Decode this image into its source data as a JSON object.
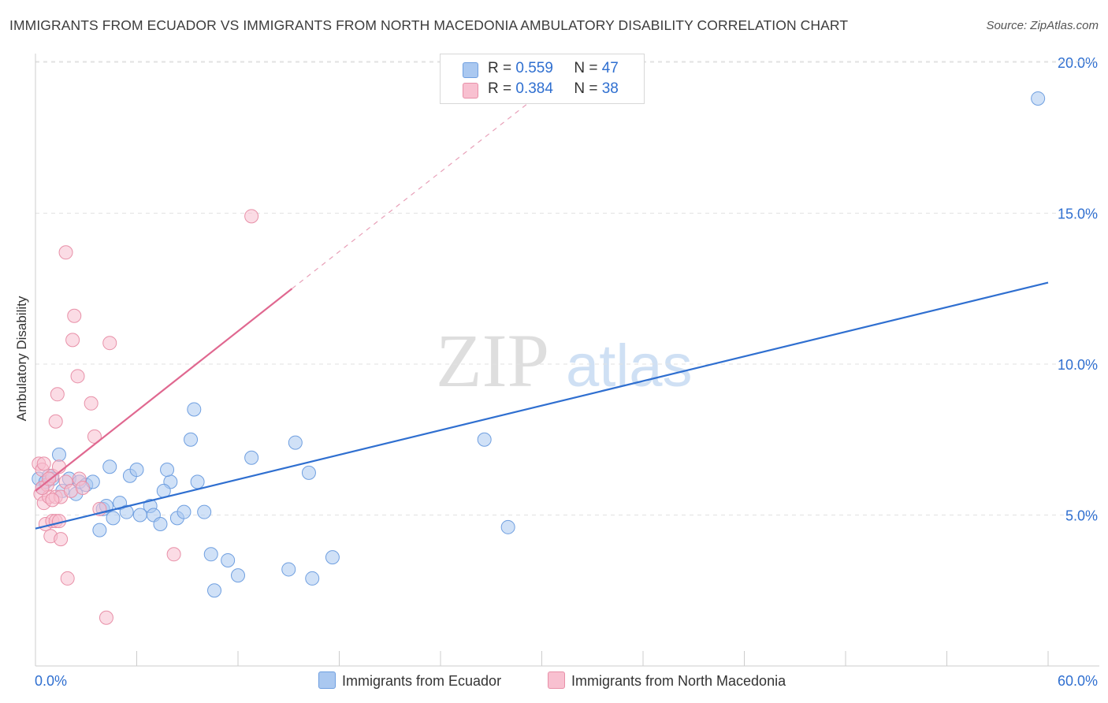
{
  "title": "IMMIGRANTS FROM ECUADOR VS IMMIGRANTS FROM NORTH MACEDONIA AMBULATORY DISABILITY CORRELATION CHART",
  "source": "Source: ZipAtlas.com",
  "watermark": {
    "zip": "ZIP",
    "atlas": "atlas"
  },
  "legend": {
    "r_label": "R =",
    "n_label": "N =",
    "items": [
      {
        "r": "0.559",
        "n": "47",
        "color": "#aac8f0",
        "border": "#6f9fe0"
      },
      {
        "r": "0.384",
        "n": "38",
        "color": "#f8c0d0",
        "border": "#e890a8"
      }
    ]
  },
  "chart_data": {
    "type": "scatter",
    "title": "IMMIGRANTS FROM ECUADOR VS IMMIGRANTS FROM NORTH MACEDONIA AMBULATORY DISABILITY CORRELATION CHART",
    "xlabel": "",
    "ylabel": "Ambulatory Disability",
    "xlim": [
      0,
      60
    ],
    "ylim": [
      0,
      20.5
    ],
    "x_tick_labels": [
      "0.0%",
      "60.0%"
    ],
    "y_ticks": [
      5,
      10,
      15,
      20
    ],
    "y_tick_labels": [
      "5.0%",
      "10.0%",
      "15.0%",
      "20.0%"
    ],
    "legend_position": "top-center",
    "series": [
      {
        "name": "Immigrants from Ecuador",
        "color": "#aac8f0",
        "stroke": "#6f9fe0",
        "line_color": "#2f6fd0",
        "trend": {
          "x0": 0,
          "y0": 4.55,
          "x1": 60,
          "y1": 12.7
        },
        "points": [
          [
            0.2,
            6.2
          ],
          [
            0.4,
            5.9
          ],
          [
            0.6,
            6.1
          ],
          [
            0.8,
            6.3
          ],
          [
            1.0,
            6.2
          ],
          [
            1.4,
            7.0
          ],
          [
            1.6,
            5.8
          ],
          [
            2.0,
            6.2
          ],
          [
            2.4,
            5.7
          ],
          [
            2.6,
            6.1
          ],
          [
            3.0,
            6.0
          ],
          [
            3.4,
            6.1
          ],
          [
            3.8,
            4.5
          ],
          [
            4.0,
            5.2
          ],
          [
            4.4,
            6.6
          ],
          [
            4.6,
            4.9
          ],
          [
            5.0,
            5.4
          ],
          [
            5.4,
            5.1
          ],
          [
            5.6,
            6.3
          ],
          [
            6.0,
            6.5
          ],
          [
            6.2,
            5.0
          ],
          [
            6.8,
            5.3
          ],
          [
            7.0,
            5.0
          ],
          [
            7.4,
            4.7
          ],
          [
            8.0,
            6.1
          ],
          [
            7.8,
            6.5
          ],
          [
            8.4,
            4.9
          ],
          [
            7.6,
            5.8
          ],
          [
            9.2,
            7.5
          ],
          [
            9.4,
            8.5
          ],
          [
            9.6,
            6.1
          ],
          [
            10.0,
            5.1
          ],
          [
            10.4,
            3.7
          ],
          [
            10.6,
            2.5
          ],
          [
            11.4,
            3.5
          ],
          [
            12.0,
            3.0
          ],
          [
            12.8,
            6.9
          ],
          [
            15.0,
            3.2
          ],
          [
            15.4,
            7.4
          ],
          [
            16.2,
            6.4
          ],
          [
            16.4,
            2.9
          ],
          [
            17.6,
            3.6
          ],
          [
            26.6,
            7.5
          ],
          [
            28.0,
            4.6
          ],
          [
            59.4,
            18.8
          ],
          [
            8.8,
            5.1
          ],
          [
            4.2,
            5.3
          ]
        ]
      },
      {
        "name": "Immigrants from North Macedonia",
        "color": "#f8c0d0",
        "stroke": "#e890a8",
        "line_color": "#e06890",
        "trend": {
          "x0": 0,
          "y0": 5.8,
          "x1": 15.2,
          "y1": 12.5
        },
        "trend_dashed_to": {
          "x": 30,
          "y": 19.0
        },
        "points": [
          [
            0.2,
            6.7
          ],
          [
            0.3,
            5.7
          ],
          [
            0.4,
            6.5
          ],
          [
            0.5,
            5.4
          ],
          [
            0.5,
            6.7
          ],
          [
            0.6,
            4.7
          ],
          [
            0.7,
            6.0
          ],
          [
            0.8,
            5.6
          ],
          [
            0.9,
            4.3
          ],
          [
            1.0,
            4.8
          ],
          [
            1.0,
            6.3
          ],
          [
            1.2,
            5.6
          ],
          [
            1.2,
            8.1
          ],
          [
            1.2,
            4.8
          ],
          [
            1.3,
            9.0
          ],
          [
            1.4,
            6.6
          ],
          [
            1.5,
            5.6
          ],
          [
            1.5,
            4.2
          ],
          [
            1.8,
            6.1
          ],
          [
            1.8,
            13.7
          ],
          [
            1.9,
            2.9
          ],
          [
            2.1,
            5.8
          ],
          [
            2.2,
            10.8
          ],
          [
            2.3,
            11.6
          ],
          [
            2.5,
            9.6
          ],
          [
            2.6,
            6.2
          ],
          [
            2.8,
            5.9
          ],
          [
            3.3,
            8.7
          ],
          [
            3.5,
            7.6
          ],
          [
            3.8,
            5.2
          ],
          [
            4.2,
            1.6
          ],
          [
            4.4,
            10.7
          ],
          [
            8.2,
            3.7
          ],
          [
            12.8,
            14.9
          ],
          [
            0.4,
            5.9
          ],
          [
            1.0,
            5.5
          ],
          [
            1.4,
            4.8
          ],
          [
            0.8,
            6.2
          ]
        ]
      }
    ]
  },
  "bottom_legend": [
    "Immigrants from Ecuador",
    "Immigrants from North Macedonia"
  ]
}
